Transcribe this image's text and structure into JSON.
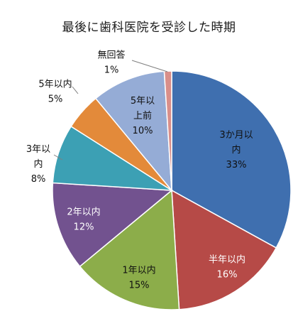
{
  "chart_data": {
    "type": "pie",
    "title": "最後に歯科医院を受診した時期",
    "slices": [
      {
        "lines": [
          "3か月以",
          "内"
        ],
        "value": 33,
        "value_label": "33%",
        "color": "#3f6faf",
        "text_color": "#101010"
      },
      {
        "lines": [
          "半年以内"
        ],
        "value": 16,
        "value_label": "16%",
        "color": "#b64a47",
        "text_color": "#ffffff"
      },
      {
        "lines": [
          "1年以内"
        ],
        "value": 15,
        "value_label": "15%",
        "color": "#8cad4a",
        "text_color": "#101010"
      },
      {
        "lines": [
          "2年以内"
        ],
        "value": 12,
        "value_label": "12%",
        "color": "#72528f",
        "text_color": "#ffffff"
      },
      {
        "lines": [
          "3年以",
          "内"
        ],
        "value": 8,
        "value_label": "8%",
        "color": "#3ca0b4",
        "text_color": "#101010"
      },
      {
        "lines": [
          "5年以内"
        ],
        "value": 5,
        "value_label": "5%",
        "color": "#e38a3a",
        "text_color": "#101010"
      },
      {
        "lines": [
          "5年以",
          "上前"
        ],
        "value": 10,
        "value_label": "10%",
        "color": "#95acd6",
        "text_color": "#101010"
      },
      {
        "lines": [
          "無回答"
        ],
        "value": 1,
        "value_label": "1%",
        "color": "#d98f8a",
        "text_color": "#101010"
      }
    ]
  }
}
